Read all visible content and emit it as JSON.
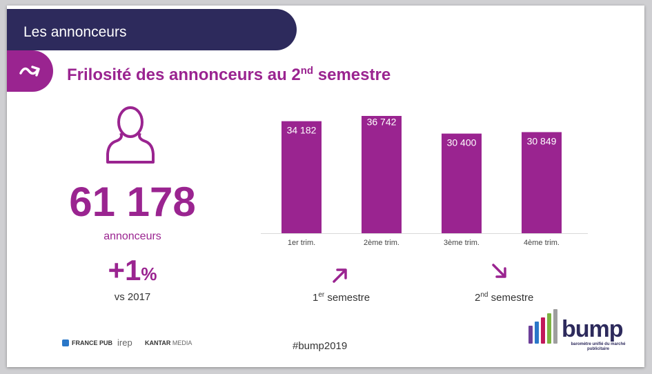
{
  "section": {
    "title": "Les annonceurs"
  },
  "heading": {
    "text": "Frilosité des annonceurs au 2",
    "sup": "nd",
    "text_after": " semestre"
  },
  "icons": {
    "arrow_tab": "arrow-right-icon",
    "person": "person-icon",
    "trend_up": "arrow-up-right-icon",
    "trend_down": "arrow-down-right-icon"
  },
  "stats": {
    "total": "61 178",
    "total_label": "annonceurs",
    "growth_value": "+1",
    "growth_unit": "%",
    "comparison": "vs 2017"
  },
  "semesters": [
    {
      "num": "1",
      "sup": "er",
      "label": " semestre",
      "trend": "up"
    },
    {
      "num": "2",
      "sup": "nd",
      "label": " semestre",
      "trend": "down"
    }
  ],
  "chart_data": {
    "type": "bar",
    "categories": [
      "1er trim.",
      "2ème trim.",
      "3ème trim.",
      "4ème trim."
    ],
    "values": [
      34182,
      36742,
      30400,
      30849
    ],
    "value_labels": [
      "34 182",
      "36 742",
      "30 400",
      "30 849"
    ],
    "ylim": [
      0,
      40000
    ],
    "grid": false,
    "color": "#9a2490"
  },
  "footer": {
    "hashtag": "#bump2019",
    "logo_france_pub": "FRANCE PUB",
    "logo_irep": "irep",
    "logo_kantar": "KANTAR",
    "logo_kantar_media": "MEDIA",
    "bump_word": "bump",
    "bump_tagline": "baromètre unifié du marché publicitaire"
  },
  "colors": {
    "purple": "#9a2490",
    "navy": "#2d2a5c"
  }
}
